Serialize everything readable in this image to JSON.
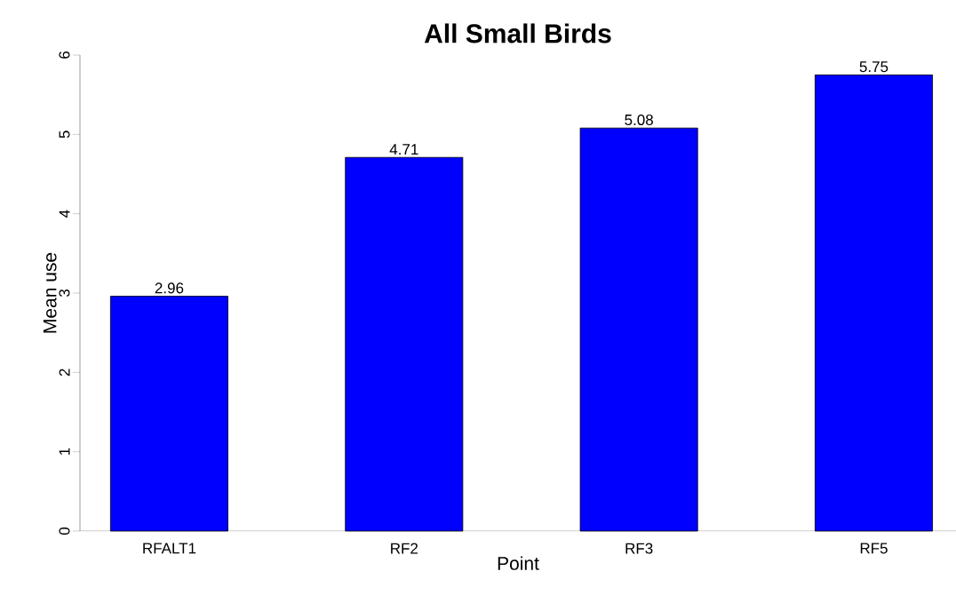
{
  "chart_data": {
    "type": "bar",
    "title": "All Small Birds",
    "xlabel": "Point",
    "ylabel": "Mean use",
    "categories": [
      "RFALT1",
      "RF2",
      "RF3",
      "RF5"
    ],
    "values": [
      2.96,
      4.71,
      5.08,
      5.75
    ],
    "color": "#0000ff",
    "ylim": [
      0,
      6
    ],
    "yticks": [
      0,
      1,
      2,
      3,
      4,
      5,
      6
    ],
    "data_labels": true,
    "grid": false
  }
}
